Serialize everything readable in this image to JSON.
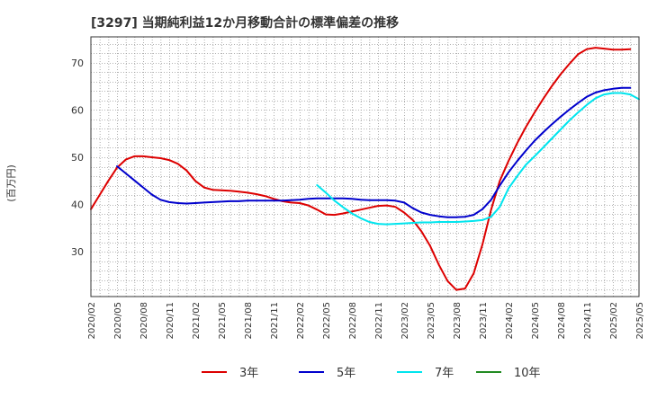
{
  "chart_data": {
    "type": "line",
    "title": "[3297]  当期純利益12か月移動合計の標準偏差の推移",
    "ylabel": "(百万円)",
    "xlabel": "",
    "ylim": [
      20.5,
      75.5
    ],
    "yticks": [
      30,
      40,
      50,
      60,
      70
    ],
    "x_ticks": [
      "2020/02",
      "2020/05",
      "2020/08",
      "2020/11",
      "2021/02",
      "2021/05",
      "2021/08",
      "2021/11",
      "2022/02",
      "2022/05",
      "2022/08",
      "2022/11",
      "2023/02",
      "2023/05",
      "2023/08",
      "2023/11",
      "2024/02",
      "2024/05",
      "2024/08",
      "2024/11",
      "2025/02",
      "2025/05"
    ],
    "x_start": "2020/02",
    "grid": true,
    "legend_position": "bottom",
    "series": [
      {
        "name": "3年",
        "color": "#dd0000",
        "start": "2020/02",
        "values": [
          39.0,
          42.0,
          45.0,
          47.8,
          49.5,
          50.2,
          50.2,
          50.0,
          49.8,
          49.4,
          48.6,
          47.2,
          45.0,
          43.6,
          43.1,
          43.0,
          42.9,
          42.7,
          42.5,
          42.2,
          41.8,
          41.2,
          40.7,
          40.4,
          40.3,
          39.8,
          38.9,
          37.9,
          37.8,
          38.1,
          38.5,
          38.9,
          39.3,
          39.7,
          39.8,
          39.5,
          38.3,
          36.7,
          34.3,
          31.2,
          27.2,
          23.8,
          21.9,
          22.2,
          25.4,
          31.5,
          38.9,
          45.0,
          49.2,
          53.0,
          56.4,
          59.5,
          62.4,
          65.1,
          67.6,
          69.8,
          71.8,
          72.9,
          73.2,
          73.0,
          72.8,
          72.8,
          72.9
        ]
      },
      {
        "name": "5年",
        "color": "#0000cc",
        "start": "2020/05",
        "values": [
          48.1,
          46.6,
          45.1,
          43.6,
          42.1,
          41.0,
          40.5,
          40.3,
          40.2,
          40.3,
          40.4,
          40.5,
          40.6,
          40.7,
          40.7,
          40.8,
          40.8,
          40.8,
          40.8,
          40.8,
          40.9,
          41.0,
          41.2,
          41.3,
          41.3,
          41.3,
          41.3,
          41.2,
          41.0,
          40.9,
          40.9,
          40.9,
          40.8,
          40.4,
          39.2,
          38.3,
          37.8,
          37.5,
          37.3,
          37.3,
          37.4,
          37.8,
          39.0,
          41.0,
          44.0,
          46.8,
          49.2,
          51.4,
          53.5,
          55.3,
          57.0,
          58.6,
          60.1,
          61.5,
          62.8,
          63.7,
          64.2,
          64.5,
          64.7,
          64.7
        ]
      },
      {
        "name": "7年",
        "color": "#00e5ee",
        "start": "2022/04",
        "values": [
          44.1,
          42.5,
          40.8,
          39.4,
          38.1,
          37.1,
          36.3,
          35.9,
          35.8,
          35.9,
          36.0,
          36.1,
          36.2,
          36.2,
          36.3,
          36.3,
          36.3,
          36.4,
          36.5,
          36.7,
          37.4,
          39.5,
          43.4,
          46.0,
          48.4,
          50.2,
          52.1,
          54.0,
          55.9,
          57.8,
          59.5,
          61.1,
          62.5,
          63.3,
          63.6,
          63.6,
          63.3,
          62.3
        ]
      },
      {
        "name": "10年",
        "color": "#228b22",
        "start": "2025/02",
        "values": []
      }
    ]
  }
}
